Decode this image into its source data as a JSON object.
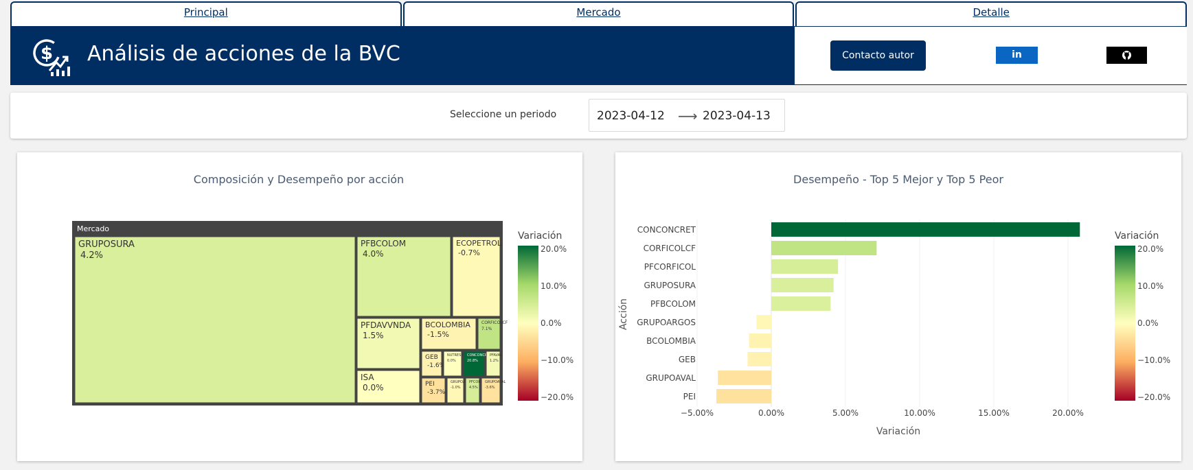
{
  "nav": {
    "tabs": [
      "Principal",
      "Mercado",
      "Detalle"
    ]
  },
  "header": {
    "title": "Análisis de acciones de la BVC",
    "contact_label": "Contacto autor",
    "linkedin_label": "in"
  },
  "period": {
    "label": "Seleccione un periodo",
    "start": "2023-04-12",
    "end": "2023-04-13"
  },
  "colors": {
    "navy": "#002d62",
    "scale": [
      "#a50026",
      "#fdae61",
      "#ffffbf",
      "#a6d96a",
      "#006837"
    ]
  },
  "chart_data": [
    {
      "type": "treemap",
      "title": "Composición y Desempeño por acción",
      "root": "Mercado",
      "legend_title": "Variación",
      "colorbar_ticks": [
        "20.0%",
        "10.0%",
        "0.0%",
        "−10.0%",
        "−20.0%"
      ],
      "colorbar_range": [
        -20,
        20
      ],
      "tiles": [
        {
          "name": "GRUPOSURA",
          "value_label": "4.2%",
          "variation": 4.2
        },
        {
          "name": "PFBCOLOM",
          "value_label": "4.0%",
          "variation": 4.0
        },
        {
          "name": "ECOPETROL",
          "value_label": "-0.7%",
          "variation": -0.7
        },
        {
          "name": "PFDAVVNDA",
          "value_label": "1.5%",
          "variation": 1.5
        },
        {
          "name": "BCOLOMBIA",
          "value_label": "-1.5%",
          "variation": -1.5
        },
        {
          "name": "CORFICOLCF",
          "value_label": "7.1%",
          "variation": 7.1
        },
        {
          "name": "GEB",
          "value_label": "-1.6%",
          "variation": -1.6
        },
        {
          "name": "NUTRESA",
          "value_label": "0.0%",
          "variation": 0.0
        },
        {
          "name": "CONCONCRET",
          "value_label": "20.8%",
          "variation": 20.8
        },
        {
          "name": "PFAVAL",
          "value_label": "1.2%",
          "variation": 1.2
        },
        {
          "name": "ISA",
          "value_label": "0.0%",
          "variation": 0.0
        },
        {
          "name": "PEI",
          "value_label": "-3.7%",
          "variation": -3.7
        },
        {
          "name": "GRUPOARGOS",
          "value_label": "-1.0%",
          "variation": -1.0
        },
        {
          "name": "PFCORFICOL",
          "value_label": "4.5%",
          "variation": 4.5
        },
        {
          "name": "GRUPOAVAL",
          "value_label": "-3.6%",
          "variation": -3.6
        }
      ]
    },
    {
      "type": "bar",
      "orientation": "horizontal",
      "title": "Desempeño - Top 5 Mejor y Top 5 Peor",
      "xlabel": "Variación",
      "ylabel": "Acción",
      "legend_title": "Variación",
      "categories": [
        "CONCONCRET",
        "CORFICOLCF",
        "PFCORFICOL",
        "GRUPOSURA",
        "PFBCOLOM",
        "GRUPOARGOS",
        "BCOLOMBIA",
        "GEB",
        "GRUPOAVAL",
        "PEI"
      ],
      "values": [
        20.8,
        7.1,
        4.5,
        4.2,
        4.0,
        -1.0,
        -1.5,
        -1.6,
        -3.6,
        -3.7
      ],
      "xlim": [
        -5,
        21
      ],
      "x_ticks": [
        -5,
        0,
        5,
        10,
        15,
        20
      ],
      "x_tick_labels": [
        "−5.00%",
        "0.00%",
        "5.00%",
        "10.00%",
        "15.00%",
        "20.00%"
      ],
      "colorbar_ticks": [
        "20.0%",
        "10.0%",
        "0.0%",
        "−10.0%",
        "−20.0%"
      ],
      "colorbar_range": [
        -20,
        20
      ]
    }
  ]
}
